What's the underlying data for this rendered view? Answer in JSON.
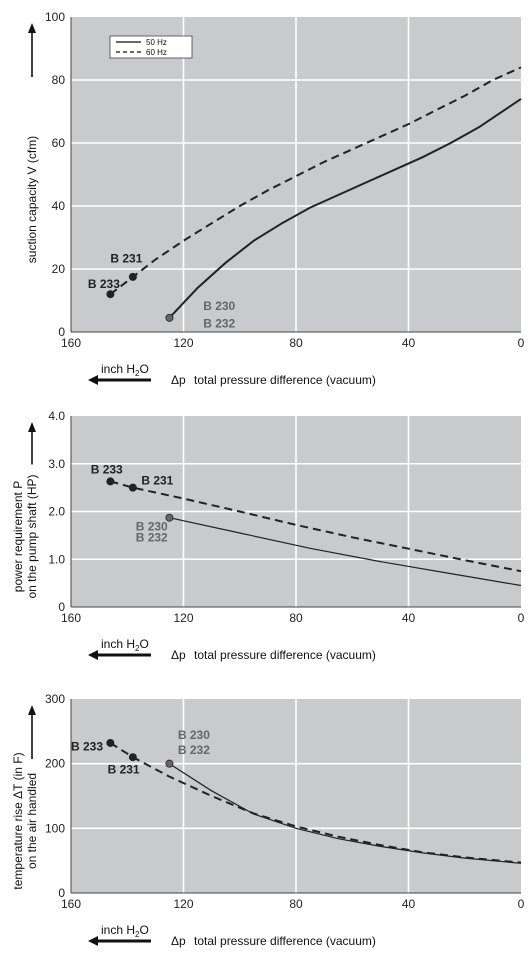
{
  "legend": [
    {
      "label": "50 Hz",
      "style": "solid"
    },
    {
      "label": "60 Hz",
      "style": "dashed"
    }
  ],
  "common": {
    "xlabel": "total pressure difference (vacuum)",
    "delta_symbol": "Δp",
    "unit_prefix": "inch H",
    "unit_sub": "2",
    "unit_suffix": "O",
    "xticks": [
      "160",
      "120",
      "80",
      "40",
      "0"
    ]
  },
  "chart_data": [
    {
      "type": "line",
      "xlim": [
        160,
        0
      ],
      "ylim": [
        0,
        100
      ],
      "yticks": [
        "0",
        "20",
        "40",
        "60",
        "80",
        "100"
      ],
      "ylabel": [
        "suction capacity V (cfm)"
      ],
      "series": [
        {
          "name": "50 Hz",
          "style": "solid",
          "width": 2,
          "x": [
            125,
            115,
            105,
            95,
            85,
            75,
            65,
            55,
            45,
            35,
            25,
            15,
            5,
            0
          ],
          "y": [
            4.5,
            14,
            22,
            29,
            34.5,
            39.5,
            43.5,
            47.5,
            51.5,
            55.5,
            60,
            65,
            71,
            74
          ]
        },
        {
          "name": "60 Hz",
          "style": "dashed",
          "width": 2,
          "x": [
            146,
            138,
            130,
            120,
            110,
            100,
            90,
            80,
            70,
            60,
            50,
            40,
            30,
            20,
            10,
            0
          ],
          "y": [
            12,
            17.5,
            23,
            29,
            34.5,
            40,
            45,
            49.5,
            54,
            58,
            62,
            66,
            70.5,
            75,
            80,
            84
          ]
        }
      ],
      "points": [
        {
          "x": 146,
          "y": 12,
          "fill": "#222"
        },
        {
          "x": 138,
          "y": 17.5,
          "fill": "#222"
        },
        {
          "x": 125,
          "y": 4.5,
          "fill": "#666"
        }
      ],
      "annotations": [
        {
          "text": "B 231",
          "x": 146,
          "y": 22,
          "tone": "dark"
        },
        {
          "text": "B 233",
          "x": 154,
          "y": 14,
          "tone": "dark"
        },
        {
          "text": "B 230",
          "x": 113,
          "y": 7,
          "tone": "grey"
        },
        {
          "text": "B 232",
          "x": 113,
          "y": 1.5,
          "tone": "grey"
        }
      ]
    },
    {
      "type": "line",
      "xlim": [
        160,
        0
      ],
      "ylim": [
        0,
        4
      ],
      "yticks": [
        "0",
        "1.0",
        "2.0",
        "3.0",
        "4.0"
      ],
      "ylabel": [
        "power requirement P",
        "on the pump shaft (HP)"
      ],
      "series": [
        {
          "name": "50 Hz",
          "style": "solid",
          "width": 1.2,
          "x": [
            125,
            100,
            75,
            50,
            25,
            0
          ],
          "y": [
            1.87,
            1.55,
            1.23,
            0.95,
            0.7,
            0.45
          ]
        },
        {
          "name": "60 Hz",
          "style": "dashed",
          "width": 2,
          "x": [
            146,
            138,
            120,
            100,
            80,
            60,
            40,
            20,
            0
          ],
          "y": [
            2.63,
            2.5,
            2.27,
            2.0,
            1.72,
            1.46,
            1.22,
            0.98,
            0.75
          ]
        }
      ],
      "points": [
        {
          "x": 146,
          "y": 2.63,
          "fill": "#222"
        },
        {
          "x": 138,
          "y": 2.5,
          "fill": "#222"
        },
        {
          "x": 125,
          "y": 1.87,
          "fill": "#666"
        }
      ],
      "annotations": [
        {
          "text": "B 233",
          "x": 153,
          "y": 2.8,
          "tone": "dark"
        },
        {
          "text": "B 231",
          "x": 135,
          "y": 2.57,
          "tone": "dark"
        },
        {
          "text": "B 230",
          "x": 137,
          "y": 1.6,
          "tone": "grey"
        },
        {
          "text": "B 232",
          "x": 137,
          "y": 1.37,
          "tone": "grey"
        }
      ]
    },
    {
      "type": "line",
      "xlim": [
        160,
        0
      ],
      "ylim": [
        0,
        300
      ],
      "yticks": [
        "0",
        "100",
        "200",
        "300"
      ],
      "ylabel": [
        "temperature rise ΔT   (in F)",
        "on the air handled"
      ],
      "series": [
        {
          "name": "50 Hz",
          "style": "solid",
          "width": 1.2,
          "x": [
            125,
            110,
            95,
            80,
            65,
            50,
            35,
            20,
            0
          ],
          "y": [
            200,
            158,
            122,
            100,
            84,
            72,
            62,
            54,
            46
          ]
        },
        {
          "name": "60 Hz",
          "style": "dashed",
          "width": 2,
          "x": [
            146,
            138,
            125,
            110,
            95,
            80,
            65,
            50,
            35,
            20,
            0
          ],
          "y": [
            232,
            210,
            180,
            150,
            123,
            103,
            87,
            74,
            63,
            55,
            47
          ]
        }
      ],
      "points": [
        {
          "x": 146,
          "y": 232,
          "fill": "#222"
        },
        {
          "x": 138,
          "y": 210,
          "fill": "#222"
        },
        {
          "x": 125,
          "y": 200,
          "fill": "#666"
        }
      ],
      "annotations": [
        {
          "text": "B 233",
          "x": 160,
          "y": 220,
          "tone": "dark"
        },
        {
          "text": "B 231",
          "x": 147,
          "y": 185,
          "tone": "dark"
        },
        {
          "text": "B 230",
          "x": 122,
          "y": 238,
          "tone": "grey"
        },
        {
          "text": "B 232",
          "x": 122,
          "y": 215,
          "tone": "grey"
        }
      ]
    }
  ]
}
